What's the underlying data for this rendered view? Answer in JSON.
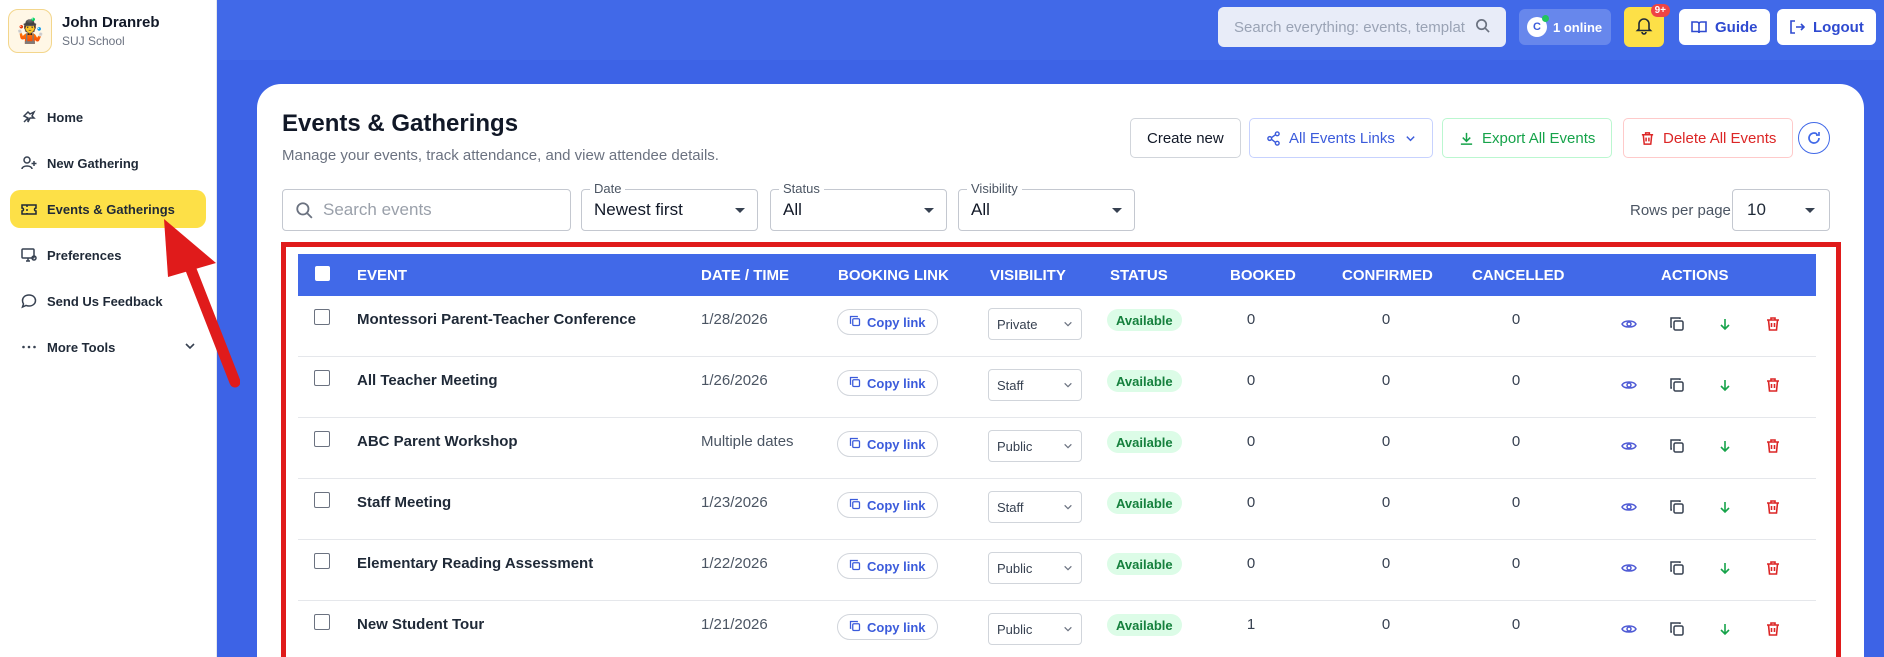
{
  "app": {
    "user_name": "John Dranreb",
    "school": "SUJ School"
  },
  "sidebar": {
    "items": [
      {
        "label": "Home",
        "icon": "home-icon"
      },
      {
        "label": "New Gathering",
        "icon": "user-plus-icon"
      },
      {
        "label": "Events & Gatherings",
        "icon": "ticket-icon",
        "active": true
      },
      {
        "label": "Preferences",
        "icon": "monitor-gear-icon"
      },
      {
        "label": "Send Us Feedback",
        "icon": "message-icon"
      },
      {
        "label": "More Tools",
        "icon": "dots-icon"
      }
    ]
  },
  "topbar": {
    "search_placeholder": "Search everything: events, templat",
    "online": "1 online",
    "online_initial": "C",
    "notif_badge": "9+",
    "guide": "Guide",
    "logout": "Logout"
  },
  "page": {
    "title": "Events & Gatherings",
    "subtitle": "Manage your events, track attendance, and view attendee details.",
    "create_new": "Create new",
    "all_links": "All Events Links",
    "export_all": "Export All Events",
    "delete_all": "Delete All Events"
  },
  "filters": {
    "search_placeholder": "Search events",
    "date_label": "Date",
    "date_value": "Newest first",
    "status_label": "Status",
    "status_value": "All",
    "visibility_label": "Visibility",
    "visibility_value": "All",
    "rows_label": "Rows per page",
    "rows_value": "10"
  },
  "table": {
    "headers": [
      "Event",
      "Date / Time",
      "Booking Link",
      "Visibility",
      "Status",
      "Booked",
      "Confirmed",
      "Cancelled",
      "Actions"
    ],
    "copy_label": "Copy link",
    "rows": [
      {
        "event": "Montessori Parent-Teacher Conference",
        "date": "1/28/2026",
        "visibility": "Private",
        "status": "Available",
        "booked": "0",
        "confirmed": "0",
        "cancelled": "0"
      },
      {
        "event": "All Teacher Meeting",
        "date": "1/26/2026",
        "visibility": "Staff",
        "status": "Available",
        "booked": "0",
        "confirmed": "0",
        "cancelled": "0"
      },
      {
        "event": "ABC Parent Workshop",
        "date": "Multiple dates",
        "visibility": "Public",
        "status": "Available",
        "booked": "0",
        "confirmed": "0",
        "cancelled": "0"
      },
      {
        "event": "Staff Meeting",
        "date": "1/23/2026",
        "visibility": "Staff",
        "status": "Available",
        "booked": "0",
        "confirmed": "0",
        "cancelled": "0"
      },
      {
        "event": "Elementary Reading Assessment",
        "date": "1/22/2026",
        "visibility": "Public",
        "status": "Available",
        "booked": "0",
        "confirmed": "0",
        "cancelled": "0"
      },
      {
        "event": "New Student Tour",
        "date": "1/21/2026",
        "visibility": "Public",
        "status": "Available",
        "booked": "1",
        "confirmed": "0",
        "cancelled": "0"
      }
    ]
  },
  "colors": {
    "primary": "#4169e8",
    "highlight": "#fde047",
    "danger": "#e01b1b",
    "success": "#15803d"
  }
}
